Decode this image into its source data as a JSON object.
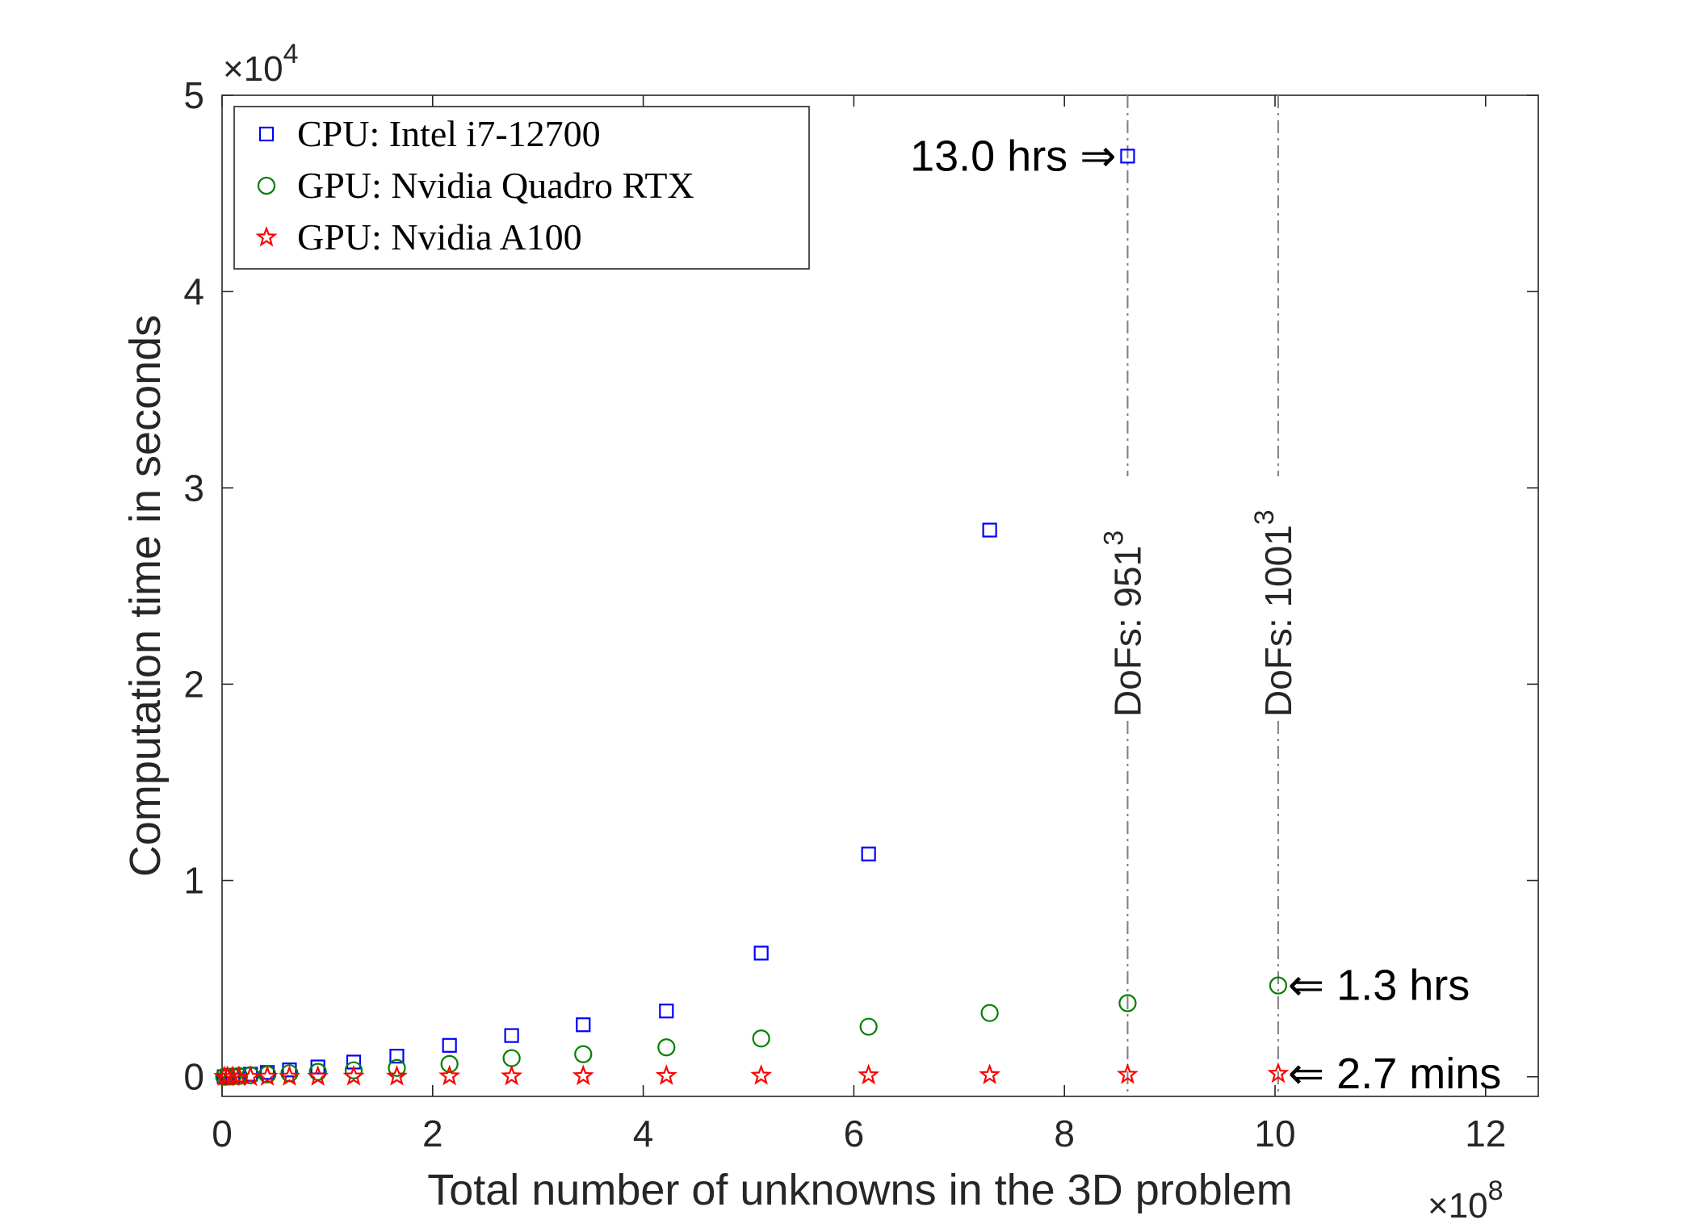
{
  "chart_data": {
    "type": "scatter",
    "title": "",
    "xlabel": "Total number of unknowns in the 3D problem",
    "ylabel": "Computation time in seconds",
    "x_multiplier": {
      "base": "×10",
      "exp": "8"
    },
    "y_multiplier": {
      "base": "×10",
      "exp": "4"
    },
    "xlim": [
      0,
      12.5
    ],
    "ylim": [
      -0.1,
      5
    ],
    "x_ticks": [
      0,
      2,
      4,
      6,
      8,
      10,
      12
    ],
    "x_tick_labels": [
      "0",
      "2",
      "4",
      "6",
      "8",
      "10",
      "12"
    ],
    "y_ticks": [
      0,
      1,
      2,
      3,
      4,
      5
    ],
    "y_tick_labels": [
      "0",
      "1",
      "2",
      "3",
      "4",
      "5"
    ],
    "grid": false,
    "legend_position": "top-left",
    "series": [
      {
        "name": "CPU: Intel i7-12700",
        "marker": "square",
        "color": "#0000ff",
        "x": [
          0.02,
          0.05,
          0.1,
          0.16,
          0.27,
          0.43,
          0.64,
          0.91,
          1.25,
          1.66,
          2.16,
          2.75,
          3.43,
          4.22,
          5.12,
          6.14,
          7.29,
          8.6
        ],
        "y": [
          0.0,
          0.002,
          0.004,
          0.008,
          0.013,
          0.022,
          0.035,
          0.05,
          0.075,
          0.105,
          0.16,
          0.21,
          0.265,
          0.335,
          0.63,
          1.135,
          2.785,
          4.69
        ]
      },
      {
        "name": "GPU: Nvidia Quadro RTX",
        "marker": "circle",
        "color": "#008000",
        "x": [
          0.02,
          0.05,
          0.1,
          0.16,
          0.27,
          0.43,
          0.64,
          0.91,
          1.25,
          1.66,
          2.16,
          2.75,
          3.43,
          4.22,
          5.12,
          6.14,
          7.29,
          8.6,
          10.03
        ],
        "y": [
          0.0,
          0.001,
          0.002,
          0.004,
          0.008,
          0.012,
          0.018,
          0.025,
          0.033,
          0.045,
          0.065,
          0.095,
          0.115,
          0.15,
          0.195,
          0.255,
          0.325,
          0.375,
          0.465
        ]
      },
      {
        "name": "GPU: Nvidia A100",
        "marker": "star",
        "color": "#ff0000",
        "x": [
          0.02,
          0.05,
          0.1,
          0.16,
          0.27,
          0.43,
          0.64,
          0.91,
          1.25,
          1.66,
          2.16,
          2.75,
          3.43,
          4.22,
          5.12,
          6.14,
          7.29,
          8.6,
          10.03
        ],
        "y": [
          0.0,
          0.0,
          0.0,
          0.0,
          0.0,
          0.001,
          0.001,
          0.001,
          0.002,
          0.002,
          0.003,
          0.003,
          0.004,
          0.005,
          0.006,
          0.008,
          0.009,
          0.011,
          0.016
        ]
      }
    ],
    "vlines": [
      {
        "x": 8.6,
        "label_base": "DoFs: 951",
        "label_exp": "3"
      },
      {
        "x": 10.03,
        "label_base": "DoFs: 1001",
        "label_exp": "3"
      }
    ],
    "annotations": [
      {
        "text": "13.0 hrs",
        "arrow": "⇒",
        "x": 8.6,
        "y": 4.69,
        "side": "left"
      },
      {
        "text": "1.3 hrs",
        "arrow": "⇐",
        "x": 10.03,
        "y": 0.465,
        "side": "right"
      },
      {
        "text": "2.7 mins",
        "arrow": "⇐",
        "x": 10.03,
        "y": 0.016,
        "side": "right"
      }
    ]
  }
}
